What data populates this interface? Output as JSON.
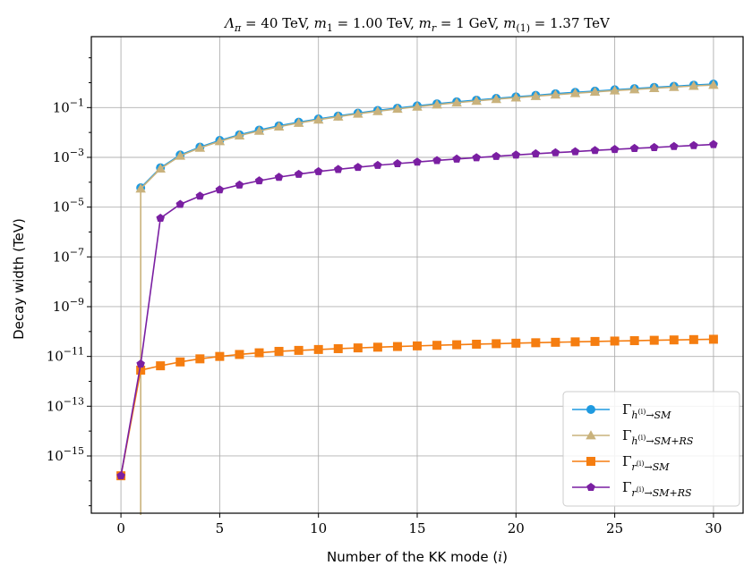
{
  "chart_data": {
    "type": "line",
    "title": "Λπ = 40 TeV, m1 = 1.00 TeV, mr = 1 GeV, m(1) = 1.37 TeV",
    "title_parts": {
      "lambda_sym": "Λ",
      "lambda_sub": "π",
      "lambda_val": " = 40 TeV, ",
      "m1_sym": "m",
      "m1_sub": "1",
      "m1_val": " = 1.00 TeV, ",
      "mr_sym": "m",
      "mr_sub": "r",
      "mr_val": " = 1 GeV, ",
      "m11_sym": "m",
      "m11_sub": "(1)",
      "m11_val": " = 1.37 TeV"
    },
    "xlabel": "Number of the KK mode (i)",
    "xlabel_parts": {
      "text": "Number of the KK mode (",
      "var": "i",
      "close": ")"
    },
    "ylabel": "Decay width (TeV)",
    "x_scale": "linear",
    "y_scale": "log",
    "xlim": [
      -1.5,
      31.5
    ],
    "ylim_exp": [
      -17.3,
      1.85
    ],
    "x_ticks": [
      0,
      5,
      10,
      15,
      20,
      25,
      30
    ],
    "y_ticks_exp": [
      -15,
      -13,
      -11,
      -9,
      -7,
      -5,
      -3,
      -1
    ],
    "y_tick_base": "10",
    "y_tick_exps": [
      "−15",
      "−13",
      "−11",
      "−9",
      "−7",
      "−5",
      "−3",
      "−1"
    ],
    "grid": true,
    "legend_position": "lower-right",
    "series": [
      {
        "name": "Γh(i)→SM",
        "legend": {
          "base": "Γ",
          "sub_main": "h",
          "sub_sup": "(i)",
          "sub_rest": "→SM"
        },
        "color": "#1f9ae0",
        "marker": "circle",
        "x": [
          1,
          2,
          3,
          4,
          5,
          6,
          7,
          8,
          9,
          10,
          11,
          12,
          13,
          14,
          15,
          16,
          17,
          18,
          19,
          20,
          21,
          22,
          23,
          24,
          25,
          26,
          27,
          28,
          29,
          30
        ],
        "y": [
          6e-05,
          0.00038,
          0.00125,
          0.0026,
          0.0048,
          0.0081,
          0.0125,
          0.0185,
          0.026,
          0.035,
          0.046,
          0.06,
          0.077,
          0.095,
          0.117,
          0.142,
          0.17,
          0.2,
          0.235,
          0.27,
          0.31,
          0.36,
          0.41,
          0.46,
          0.52,
          0.58,
          0.65,
          0.72,
          0.8,
          0.88
        ]
      },
      {
        "name": "Γh(i)→SM+RS",
        "legend": {
          "base": "Γ",
          "sub_main": "h",
          "sub_sup": "(i)",
          "sub_rest": "→SM+RS"
        },
        "color": "#c9b27c",
        "marker": "triangle",
        "x": [
          1,
          2,
          3,
          4,
          5,
          6,
          7,
          8,
          9,
          10,
          11,
          12,
          13,
          14,
          15,
          16,
          17,
          18,
          19,
          20,
          21,
          22,
          23,
          24,
          25,
          26,
          27,
          28,
          29,
          30
        ],
        "y": [
          5.5e-05,
          0.00035,
          0.00115,
          0.0024,
          0.0044,
          0.0075,
          0.0115,
          0.017,
          0.024,
          0.0325,
          0.043,
          0.056,
          0.071,
          0.088,
          0.108,
          0.131,
          0.157,
          0.185,
          0.217,
          0.25,
          0.287,
          0.33,
          0.375,
          0.425,
          0.48,
          0.535,
          0.6,
          0.665,
          0.74,
          0.81
        ],
        "drop_to_floor_at_x": 1
      },
      {
        "name": "Γr(i)→SM",
        "legend": {
          "base": "Γ",
          "sub_main": "r",
          "sub_sup": "(i)",
          "sub_rest": "→SM"
        },
        "color": "#f57d10",
        "marker": "square",
        "x": [
          0,
          1,
          2,
          3,
          4,
          5,
          6,
          7,
          8,
          9,
          10,
          11,
          12,
          13,
          14,
          15,
          16,
          17,
          18,
          19,
          20,
          21,
          22,
          23,
          24,
          25,
          26,
          27,
          28,
          29,
          30
        ],
        "y": [
          1.6e-16,
          2.8e-12,
          4.2e-12,
          6e-12,
          8e-12,
          1e-11,
          1.2e-11,
          1.4e-11,
          1.6e-11,
          1.75e-11,
          1.9e-11,
          2.05e-11,
          2.2e-11,
          2.35e-11,
          2.5e-11,
          2.65e-11,
          2.8e-11,
          2.95e-11,
          3.1e-11,
          3.25e-11,
          3.4e-11,
          3.55e-11,
          3.7e-11,
          3.85e-11,
          4e-11,
          4.15e-11,
          4.3e-11,
          4.45e-11,
          4.6e-11,
          4.75e-11,
          4.9e-11
        ]
      },
      {
        "name": "Γr(i)→SM+RS",
        "legend": {
          "base": "Γ",
          "sub_main": "r",
          "sub_sup": "(i)",
          "sub_rest": "→SM+RS"
        },
        "color": "#7a1fa2",
        "marker": "pentagon",
        "x": [
          0,
          1,
          2,
          3,
          4,
          5,
          6,
          7,
          8,
          9,
          10,
          11,
          12,
          13,
          14,
          15,
          16,
          17,
          18,
          19,
          20,
          21,
          22,
          23,
          24,
          25,
          26,
          27,
          28,
          29,
          30
        ],
        "y": [
          1.6e-16,
          5e-12,
          3.6e-06,
          1.3e-05,
          2.8e-05,
          5e-05,
          7.8e-05,
          0.000115,
          0.00016,
          0.00021,
          0.00027,
          0.00033,
          0.0004,
          0.00048,
          0.00056,
          0.00065,
          0.00075,
          0.00086,
          0.00097,
          0.0011,
          0.00125,
          0.0014,
          0.00155,
          0.0017,
          0.0019,
          0.0021,
          0.0023,
          0.0025,
          0.00275,
          0.003,
          0.0033
        ]
      }
    ]
  }
}
